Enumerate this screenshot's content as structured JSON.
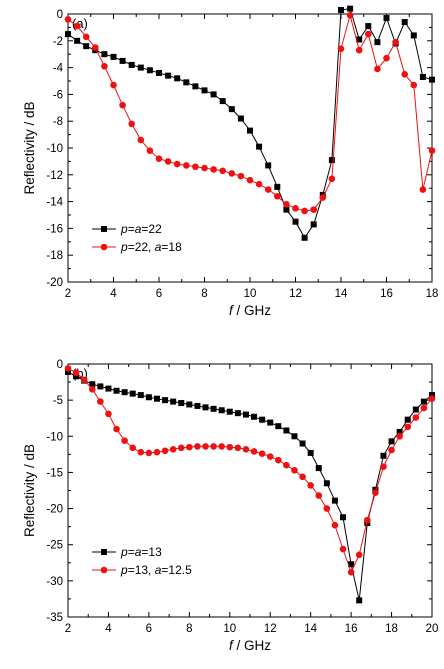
{
  "chart_data": [
    {
      "type": "line",
      "panel_label": "(a)",
      "xlabel_italic": "f",
      "xlabel_rest": " / GHz",
      "ylabel": "Reflectivity / dB",
      "xlim": [
        2,
        18
      ],
      "ylim": [
        -20,
        0
      ],
      "xticks": [
        2,
        4,
        6,
        8,
        10,
        12,
        14,
        16,
        18
      ],
      "yticks": [
        0,
        -2,
        -4,
        -6,
        -8,
        -10,
        -12,
        -14,
        -16,
        -18,
        -20
      ],
      "grid": false,
      "legend_position": "bottom-left",
      "series": [
        {
          "legend": [
            {
              "t": "p",
              "i": true
            },
            {
              "t": "=",
              "i": false
            },
            {
              "t": "a",
              "i": true
            },
            {
              "t": "=22",
              "i": false
            }
          ],
          "color": "#000000",
          "marker": "square",
          "x": [
            2.0,
            2.4,
            2.8,
            3.2,
            3.6,
            4.0,
            4.4,
            4.8,
            5.2,
            5.6,
            6.0,
            6.4,
            6.8,
            7.2,
            7.6,
            8.0,
            8.4,
            8.8,
            9.2,
            9.6,
            10.0,
            10.4,
            10.8,
            11.2,
            11.6,
            12.0,
            12.4,
            12.8,
            13.2,
            13.6,
            14.0,
            14.4,
            14.8,
            15.2,
            15.6,
            16.0,
            16.4,
            16.8,
            17.2,
            17.6,
            18.0
          ],
          "y": [
            -1.5,
            -2.0,
            -2.4,
            -2.7,
            -3.0,
            -3.2,
            -3.5,
            -3.8,
            -4.0,
            -4.2,
            -4.4,
            -4.6,
            -4.8,
            -5.1,
            -5.4,
            -5.7,
            -6.0,
            -6.5,
            -7.1,
            -7.8,
            -8.7,
            -9.9,
            -11.3,
            -12.9,
            -14.6,
            -15.5,
            -16.7,
            -15.7,
            -13.5,
            -10.9,
            0.3,
            0.4,
            -1.9,
            -0.9,
            -2.1,
            -0.3,
            -2.2,
            -0.6,
            -1.6,
            -4.7,
            -4.9
          ]
        },
        {
          "legend": [
            {
              "t": "p",
              "i": true
            },
            {
              "t": "=22, ",
              "i": false
            },
            {
              "t": "a",
              "i": true
            },
            {
              "t": "=18",
              "i": false
            }
          ],
          "color": "#ee1111",
          "marker": "circle",
          "x": [
            2.0,
            2.4,
            2.8,
            3.2,
            3.6,
            4.0,
            4.4,
            4.8,
            5.2,
            5.6,
            6.0,
            6.4,
            6.8,
            7.2,
            7.6,
            8.0,
            8.4,
            8.8,
            9.2,
            9.6,
            10.0,
            10.4,
            10.8,
            11.2,
            11.6,
            12.0,
            12.4,
            12.8,
            13.2,
            13.6,
            14.0,
            14.4,
            14.8,
            15.2,
            15.6,
            16.0,
            16.4,
            16.8,
            17.2,
            17.6,
            18.0
          ],
          "y": [
            -0.4,
            -0.9,
            -1.7,
            -2.5,
            -3.9,
            -5.3,
            -6.8,
            -8.2,
            -9.4,
            -10.2,
            -10.8,
            -11.0,
            -11.2,
            -11.3,
            -11.4,
            -11.5,
            -11.6,
            -11.7,
            -11.9,
            -12.1,
            -12.4,
            -12.7,
            -13.1,
            -13.6,
            -14.2,
            -14.5,
            -14.7,
            -14.6,
            -13.7,
            -12.3,
            -2.6,
            -0.1,
            -2.7,
            -1.5,
            -4.1,
            -3.3,
            -2.1,
            -4.5,
            -5.3,
            -13.1,
            -10.2
          ]
        }
      ]
    },
    {
      "type": "line",
      "panel_label": "(b)",
      "xlabel_italic": "f",
      "xlabel_rest": " / GHz",
      "ylabel": "Reflectivity / dB",
      "xlim": [
        2,
        20
      ],
      "ylim": [
        -35,
        0
      ],
      "xticks": [
        2,
        4,
        6,
        8,
        10,
        12,
        14,
        16,
        18,
        20
      ],
      "yticks": [
        0,
        -5,
        -10,
        -15,
        -20,
        -25,
        -30,
        -35
      ],
      "grid": false,
      "legend_position": "bottom-left",
      "series": [
        {
          "legend": [
            {
              "t": "p",
              "i": true
            },
            {
              "t": "=",
              "i": false
            },
            {
              "t": "a",
              "i": true
            },
            {
              "t": "=13",
              "i": false
            }
          ],
          "color": "#000000",
          "marker": "square",
          "x": [
            2.0,
            2.4,
            2.8,
            3.2,
            3.6,
            4.0,
            4.4,
            4.8,
            5.2,
            5.6,
            6.0,
            6.4,
            6.8,
            7.2,
            7.6,
            8.0,
            8.4,
            8.8,
            9.2,
            9.6,
            10.0,
            10.4,
            10.8,
            11.2,
            11.6,
            12.0,
            12.4,
            12.8,
            13.2,
            13.6,
            14.0,
            14.4,
            14.8,
            15.2,
            15.6,
            16.0,
            16.4,
            16.8,
            17.2,
            17.6,
            18.0,
            18.4,
            18.8,
            19.2,
            19.6,
            20.0
          ],
          "y": [
            -1.1,
            -1.7,
            -2.3,
            -2.8,
            -3.1,
            -3.4,
            -3.7,
            -3.9,
            -4.1,
            -4.3,
            -4.6,
            -4.8,
            -5.0,
            -5.2,
            -5.4,
            -5.6,
            -5.8,
            -6.0,
            -6.2,
            -6.4,
            -6.6,
            -6.8,
            -7.0,
            -7.3,
            -7.7,
            -8.1,
            -8.6,
            -9.2,
            -10.0,
            -11.0,
            -12.3,
            -14.4,
            -16.5,
            -18.9,
            -21.2,
            -27.7,
            -32.7,
            -22.0,
            -17.4,
            -12.7,
            -10.7,
            -9.4,
            -7.7,
            -6.3,
            -5.2,
            -4.3
          ]
        },
        {
          "legend": [
            {
              "t": "p",
              "i": true
            },
            {
              "t": "=13, ",
              "i": false
            },
            {
              "t": "a",
              "i": true
            },
            {
              "t": "=12.5",
              "i": false
            }
          ],
          "color": "#ee1111",
          "marker": "circle",
          "x": [
            2.0,
            2.4,
            2.8,
            3.2,
            3.6,
            4.0,
            4.4,
            4.8,
            5.2,
            5.6,
            6.0,
            6.4,
            6.8,
            7.2,
            7.6,
            8.0,
            8.4,
            8.8,
            9.2,
            9.6,
            10.0,
            10.4,
            10.8,
            11.2,
            11.6,
            12.0,
            12.4,
            12.8,
            13.2,
            13.6,
            14.0,
            14.4,
            14.8,
            15.2,
            15.6,
            16.0,
            16.4,
            16.8,
            17.2,
            17.6,
            18.0,
            18.4,
            18.8,
            19.2,
            19.6,
            20.0
          ],
          "y": [
            -0.6,
            -1.2,
            -2.2,
            -3.5,
            -5.2,
            -6.9,
            -9.0,
            -10.6,
            -11.6,
            -12.2,
            -12.3,
            -12.2,
            -12.0,
            -11.8,
            -11.6,
            -11.5,
            -11.4,
            -11.4,
            -11.4,
            -11.4,
            -11.5,
            -11.6,
            -11.8,
            -12.1,
            -12.4,
            -12.8,
            -13.3,
            -14.0,
            -14.7,
            -15.6,
            -16.8,
            -18.2,
            -20.0,
            -22.3,
            -25.6,
            -28.8,
            -26.4,
            -21.6,
            -17.8,
            -14.2,
            -11.9,
            -10.0,
            -8.7,
            -7.4,
            -6.1,
            -4.8
          ]
        }
      ]
    }
  ]
}
